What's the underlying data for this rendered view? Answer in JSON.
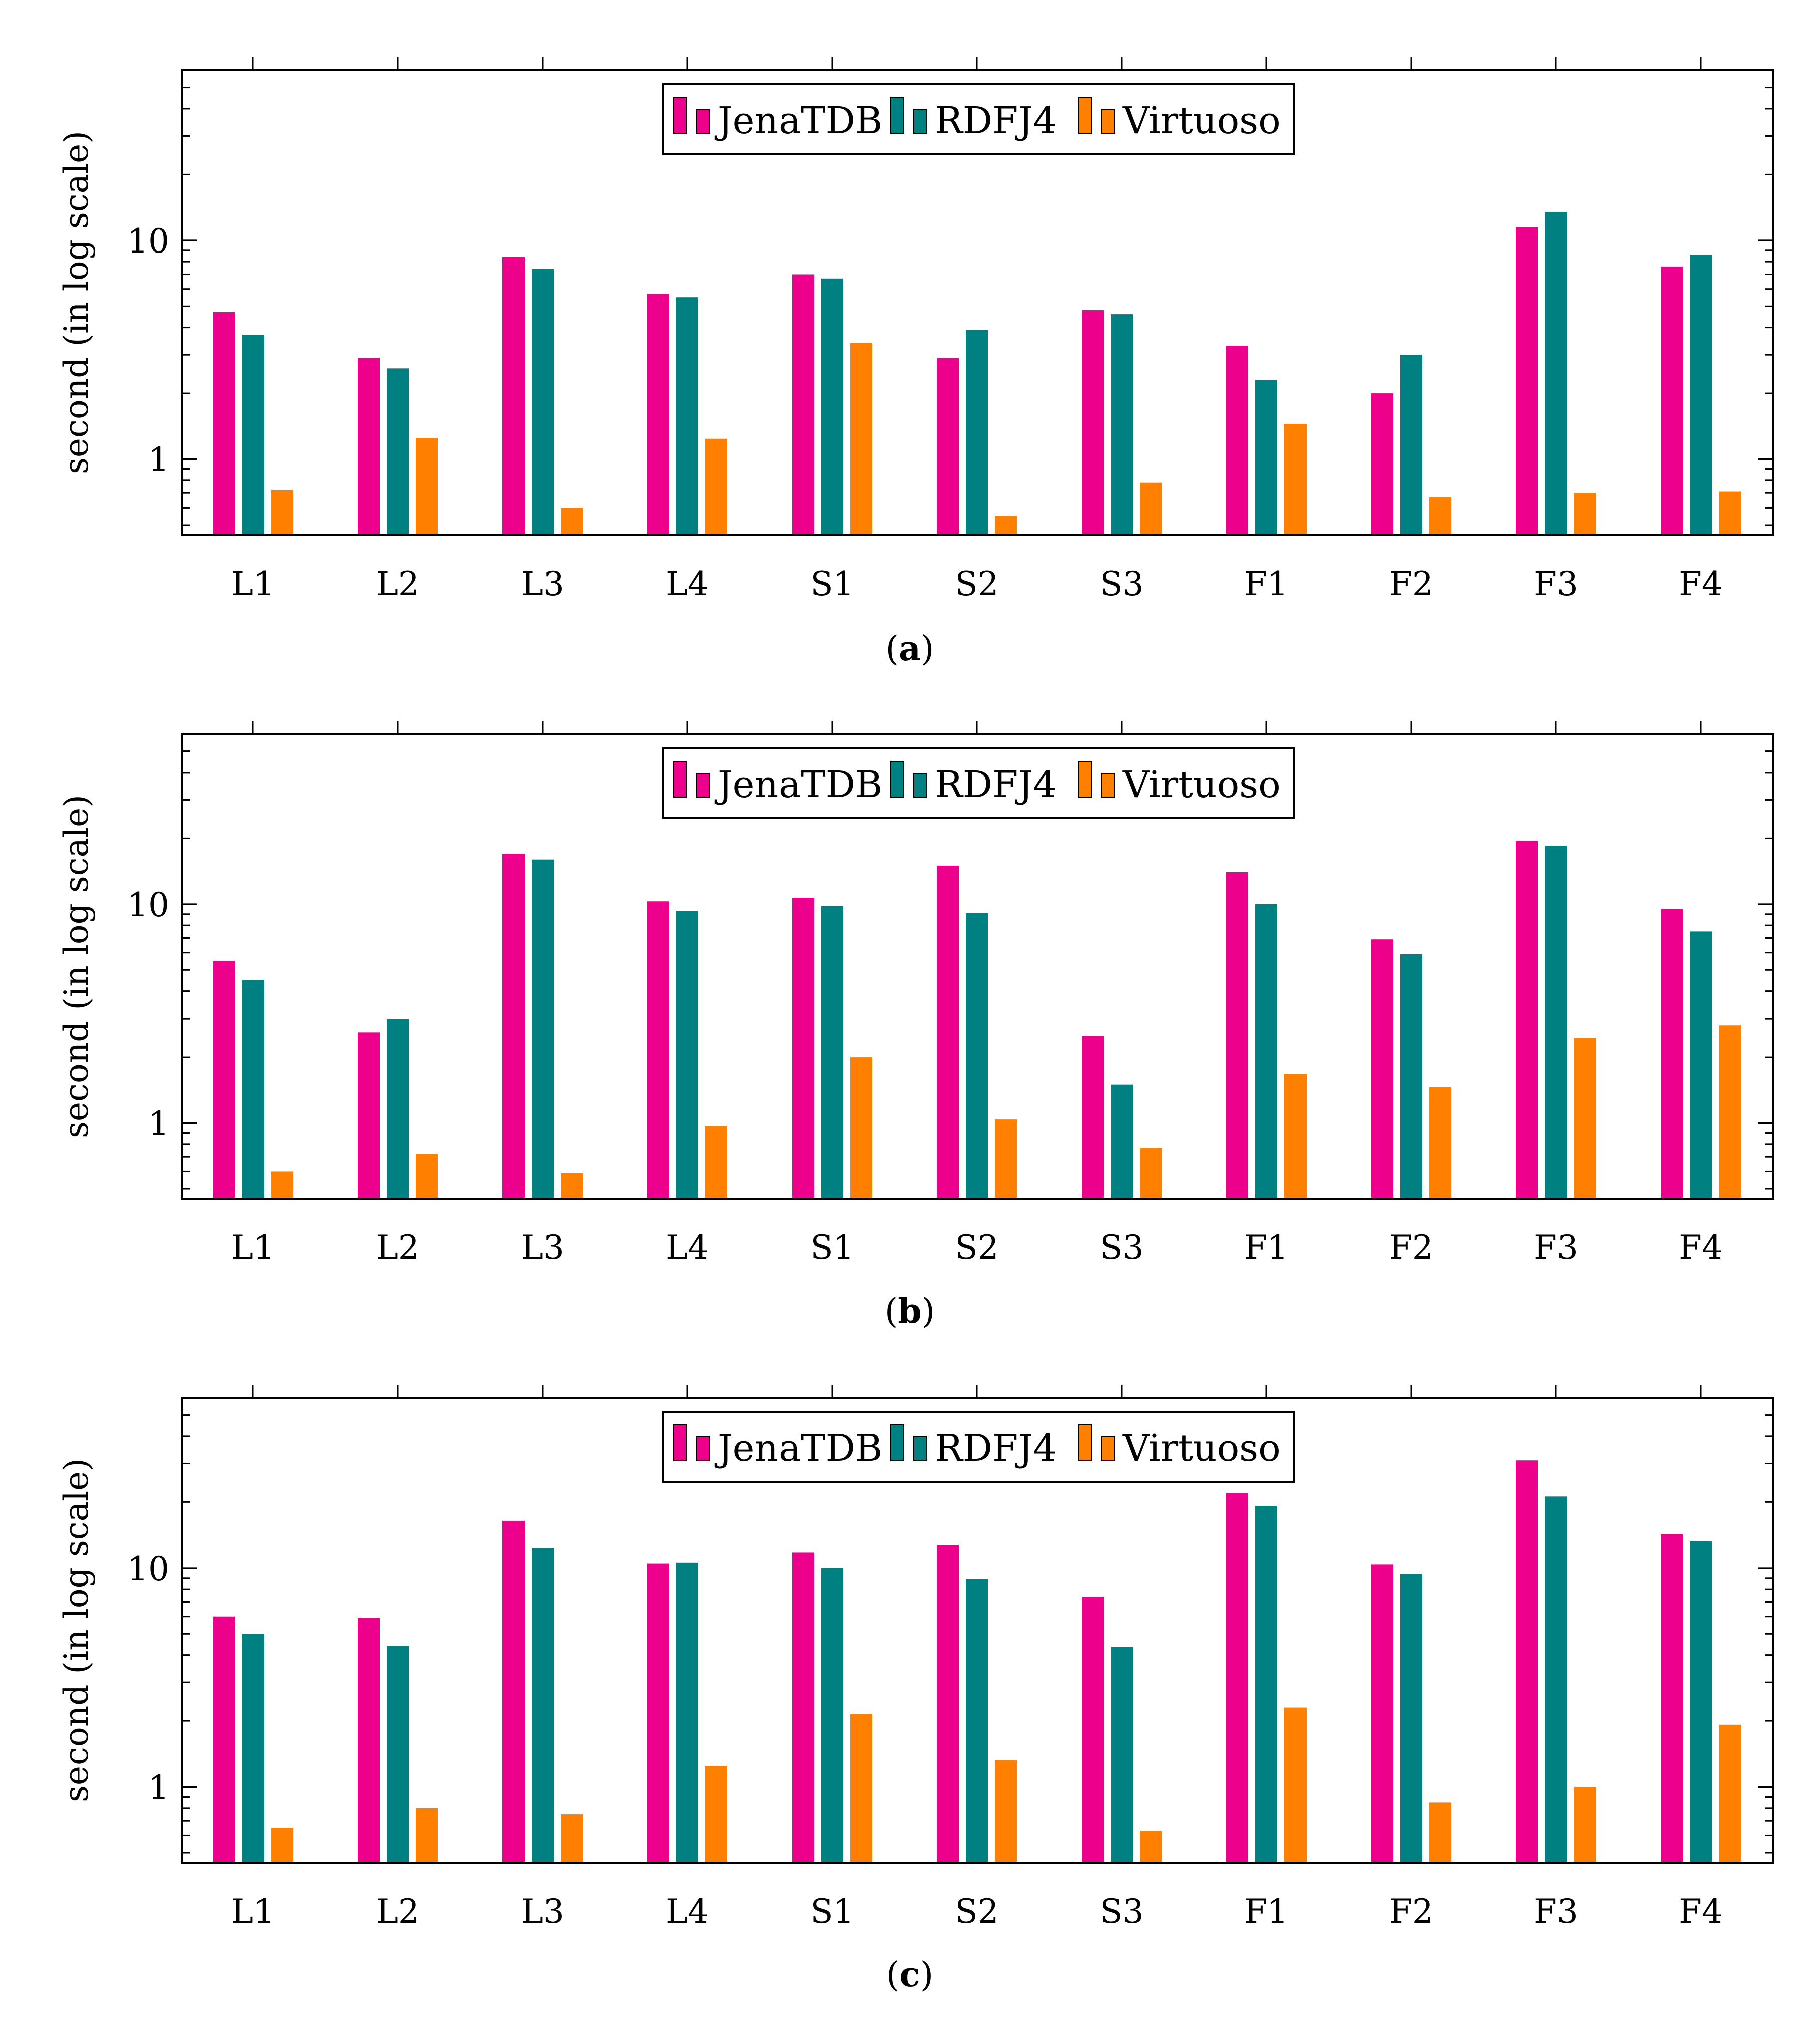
{
  "colors": {
    "JenaTDB": "#ec008c",
    "RDFJ4": "#008080",
    "Virtuoso": "#ff8000"
  },
  "chart_data": [
    {
      "type": "bar",
      "caption": "a",
      "ylabel": "second (in log scale)",
      "yscale": "log",
      "ylim": [
        0.45,
        60
      ],
      "yticks": [
        1,
        10
      ],
      "ytick_labels": [
        "1",
        "10"
      ],
      "grid": false,
      "legend_position": "top-center",
      "categories": [
        "L1",
        "L2",
        "L3",
        "L4",
        "S1",
        "S2",
        "S3",
        "F1",
        "F2",
        "F3",
        "F4"
      ],
      "series": [
        {
          "name": "JenaTDB",
          "values": [
            4.7,
            2.9,
            8.4,
            5.7,
            7.0,
            2.9,
            4.8,
            3.3,
            2.0,
            11.5,
            7.6
          ]
        },
        {
          "name": "RDFJ4",
          "values": [
            3.7,
            2.6,
            7.4,
            5.5,
            6.7,
            3.9,
            4.6,
            2.3,
            3.0,
            13.5,
            8.6
          ]
        },
        {
          "name": "Virtuoso",
          "values": [
            0.72,
            1.25,
            0.6,
            1.24,
            3.4,
            0.55,
            0.78,
            1.45,
            0.67,
            0.7,
            0.71
          ]
        }
      ]
    },
    {
      "type": "bar",
      "caption": "b",
      "ylabel": "second (in log scale)",
      "yscale": "log",
      "ylim": [
        0.45,
        60
      ],
      "yticks": [
        1,
        10
      ],
      "ytick_labels": [
        "1",
        "10"
      ],
      "grid": false,
      "legend_position": "top-center",
      "categories": [
        "L1",
        "L2",
        "L3",
        "L4",
        "S1",
        "S2",
        "S3",
        "F1",
        "F2",
        "F3",
        "F4"
      ],
      "series": [
        {
          "name": "JenaTDB",
          "values": [
            5.5,
            2.6,
            17.0,
            10.3,
            10.7,
            15.0,
            2.5,
            14.0,
            6.9,
            19.5,
            9.5
          ]
        },
        {
          "name": "RDFJ4",
          "values": [
            4.5,
            3.0,
            16.0,
            9.3,
            9.8,
            9.1,
            1.5,
            10.0,
            5.9,
            18.5,
            7.5
          ]
        },
        {
          "name": "Virtuoso",
          "values": [
            0.6,
            0.72,
            0.59,
            0.97,
            2.0,
            1.04,
            0.77,
            1.68,
            1.46,
            2.45,
            2.8
          ]
        }
      ]
    },
    {
      "type": "bar",
      "caption": "c",
      "ylabel": "second (in log scale)",
      "yscale": "log",
      "ylim": [
        0.45,
        60
      ],
      "yticks": [
        1,
        10
      ],
      "ytick_labels": [
        "1",
        "10"
      ],
      "grid": false,
      "legend_position": "top-center",
      "categories": [
        "L1",
        "L2",
        "L3",
        "L4",
        "S1",
        "S2",
        "S3",
        "F1",
        "F2",
        "F3",
        "F4"
      ],
      "series": [
        {
          "name": "JenaTDB",
          "values": [
            6.0,
            5.9,
            16.5,
            10.5,
            11.8,
            12.8,
            7.4,
            22.0,
            10.4,
            31.0,
            14.3
          ]
        },
        {
          "name": "RDFJ4",
          "values": [
            5.0,
            4.4,
            12.4,
            10.6,
            10.0,
            8.9,
            4.35,
            19.2,
            9.4,
            21.2,
            13.3
          ]
        },
        {
          "name": "Virtuoso",
          "values": [
            0.65,
            0.8,
            0.75,
            1.25,
            2.15,
            1.32,
            0.63,
            2.3,
            0.85,
            1.0,
            1.92
          ]
        }
      ]
    }
  ]
}
